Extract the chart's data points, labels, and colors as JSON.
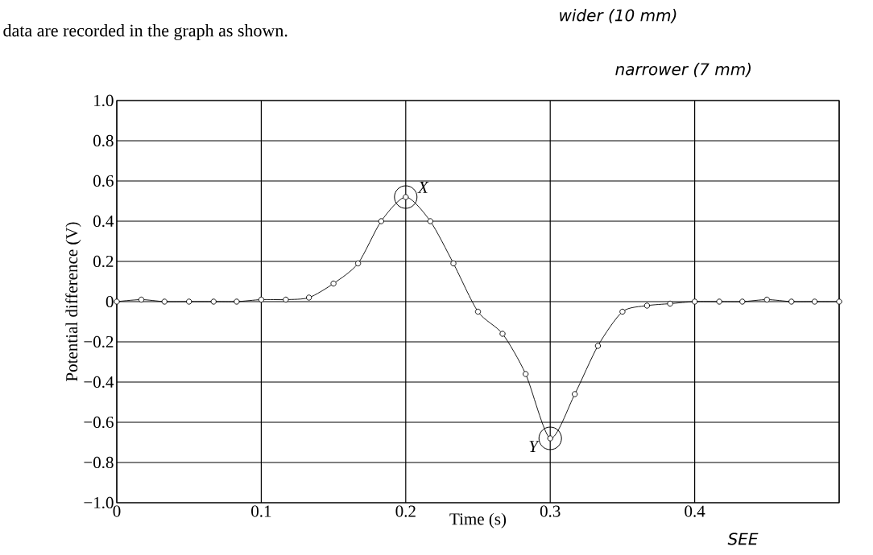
{
  "chart_data": {
    "type": "line",
    "title": "data are recorded in the graph as shown.",
    "xlabel": "Time (s)",
    "ylabel": "Potential difference (V)",
    "x": [
      0,
      0.017,
      0.033,
      0.05,
      0.067,
      0.083,
      0.1,
      0.117,
      0.133,
      0.15,
      0.167,
      0.183,
      0.2,
      0.217,
      0.233,
      0.25,
      0.267,
      0.283,
      0.3,
      0.317,
      0.333,
      0.35,
      0.367,
      0.383,
      0.4,
      0.417,
      0.433,
      0.45,
      0.467,
      0.483,
      0.5
    ],
    "series": [
      {
        "color": "#000000",
        "values": [
          0,
          0.01,
          0,
          0,
          0,
          0,
          0.01,
          0.01,
          0.02,
          0.09,
          0.19,
          0.4,
          0.52,
          0.4,
          0.19,
          -0.05,
          -0.16,
          -0.36,
          -0.68,
          -0.46,
          -0.22,
          -0.05,
          -0.02,
          -0.01,
          0,
          0,
          0,
          0.01,
          0,
          0,
          0
        ]
      }
    ],
    "xlim": [
      0,
      0.5
    ],
    "ylim": [
      -1,
      1
    ],
    "xticks": [
      0,
      0.1,
      0.2,
      0.3,
      0.4,
      {
        "value": 0.5,
        "label": null
      }
    ],
    "yticks": [
      {
        "value": -1,
        "label": "−1.0"
      },
      {
        "value": -0.8,
        "label": "−0.8"
      },
      {
        "value": -0.6,
        "label": "−0.6"
      },
      {
        "value": -0.4,
        "label": "−0.4"
      },
      {
        "value": -0.2,
        "label": "−0.2"
      },
      0,
      {
        "value": 0.2,
        "label": "0.2"
      },
      {
        "value": 0.4,
        "label": "0.4"
      },
      {
        "value": 0.6,
        "label": "0.6"
      },
      {
        "value": 0.8,
        "label": "0.8"
      },
      {
        "value": 1,
        "label": "1.0"
      }
    ],
    "grid": true,
    "marker": "circle",
    "line_style": "solid",
    "annotations": [
      {
        "text": "X",
        "x": 0.2,
        "y": 0.52
      },
      {
        "text": "Y",
        "x": 0.3,
        "y": -0.68
      },
      "wider (10 mm)",
      "narrower (7 mm)",
      "SEE"
    ]
  }
}
